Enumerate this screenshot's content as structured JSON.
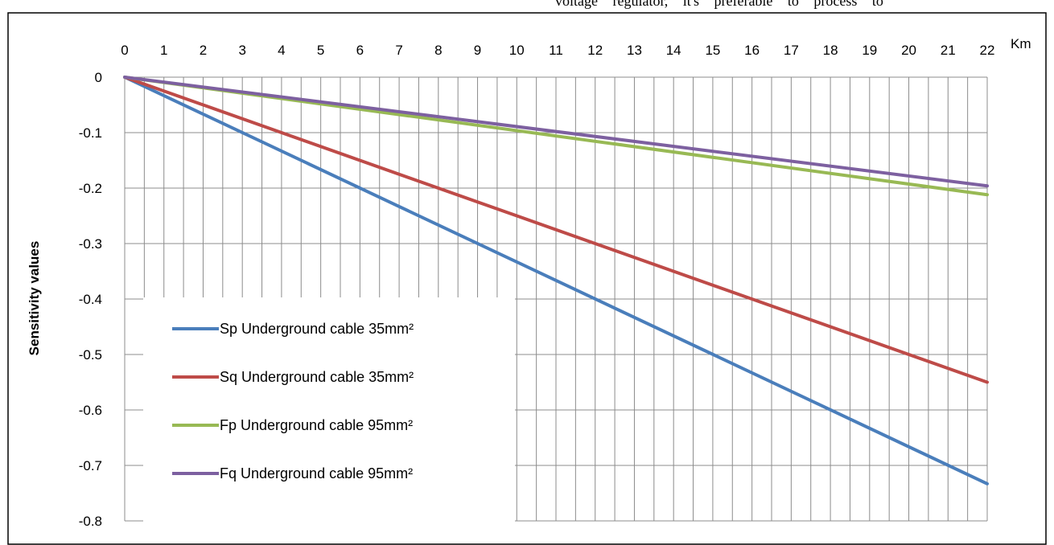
{
  "header_text": "voltage regulator, it's preferable to process to",
  "chart_data": {
    "type": "line",
    "title": "",
    "xlabel": "Km",
    "ylabel": "Sensitivity values",
    "x": [
      0,
      1,
      2,
      3,
      4,
      5,
      6,
      7,
      8,
      9,
      10,
      11,
      12,
      13,
      14,
      15,
      16,
      17,
      18,
      19,
      20,
      21,
      22
    ],
    "x_ticks": [
      "0",
      "1",
      "2",
      "3",
      "4",
      "5",
      "6",
      "7",
      "8",
      "9",
      "10",
      "11",
      "12",
      "13",
      "14",
      "15",
      "16",
      "17",
      "18",
      "19",
      "20",
      "21",
      "22"
    ],
    "y_ticks": [
      "0",
      "-0.1",
      "-0.2",
      "-0.3",
      "-0.4",
      "-0.5",
      "-0.6",
      "-0.7",
      "-0.8"
    ],
    "xlim": [
      0,
      22
    ],
    "ylim": [
      -0.8,
      0
    ],
    "x_axis_position": "top",
    "grid": true,
    "legend_placement": "bottom-left",
    "series": [
      {
        "name": "Sp Underground cable 35mm²",
        "color": "#4a7ebb",
        "start": [
          0,
          0
        ],
        "end": [
          22,
          -0.733
        ]
      },
      {
        "name": "Sq Underground cable 35mm²",
        "color": "#be4b48",
        "start": [
          0,
          0
        ],
        "end": [
          22,
          -0.55
        ]
      },
      {
        "name": "Fp Underground cable 95mm²",
        "color": "#98b954",
        "start": [
          0,
          0
        ],
        "end": [
          22,
          -0.212
        ]
      },
      {
        "name": "Fq Underground cable 95mm²",
        "color": "#7d60a0",
        "start": [
          0,
          0
        ],
        "end": [
          22,
          -0.196
        ]
      }
    ]
  }
}
